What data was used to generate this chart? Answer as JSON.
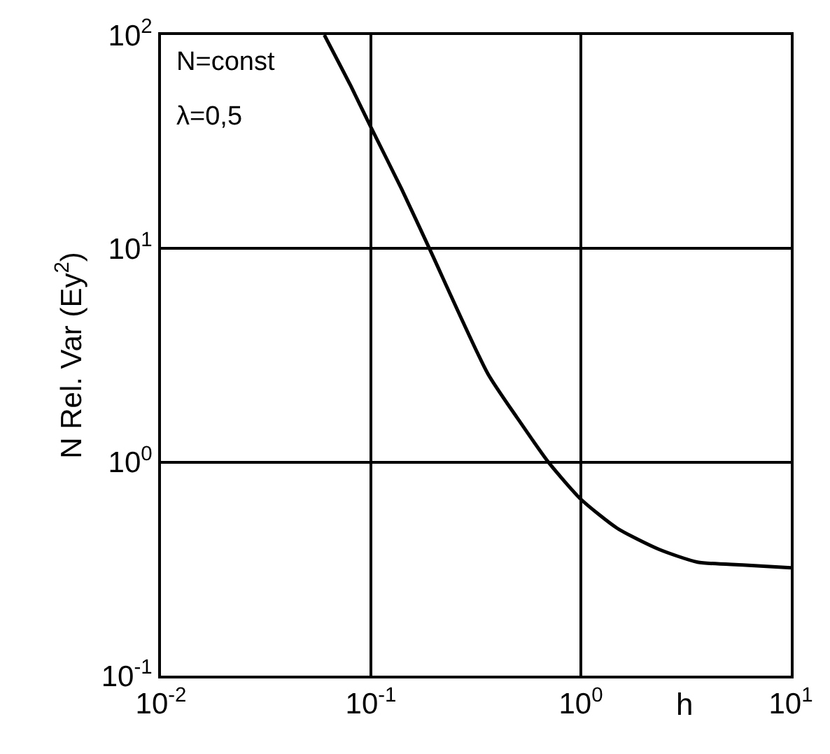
{
  "chart_data": {
    "type": "line",
    "xlabel": "h",
    "ylabel": "N Rel. Var (Ey$^{2}$)",
    "annotations": [
      "N=const",
      "λ=0,5"
    ],
    "x": [
      0.06,
      0.08,
      0.1,
      0.14,
      0.19,
      0.36,
      0.5,
      0.7,
      1,
      1.49,
      2.36,
      3.6,
      5.9,
      10
    ],
    "series": [
      {
        "color": "#000000",
        "values": [
          100,
          58,
          37,
          19,
          10,
          2.6,
          1.6,
          1,
          0.67,
          0.49,
          0.39,
          0.34,
          0.33,
          0.32
        ]
      }
    ],
    "log": "xy",
    "grid": true,
    "marker": "none",
    "line_style": "solid",
    "xlim": [
      0.01,
      10
    ],
    "ylim": [
      0.1,
      100
    ],
    "xticks": [
      {
        "value": 0.01,
        "label": "10$^{-2}$"
      },
      {
        "value": 0.1,
        "label": "10$^{-1}$"
      },
      {
        "value": 1,
        "label": "10$^{0}$"
      },
      {
        "value": 10,
        "label": "10$^{1}$"
      }
    ],
    "yticks": [
      {
        "value": 0.1,
        "label": "10$^{-1}$"
      },
      {
        "value": 1,
        "label": "10$^{0}$"
      },
      {
        "value": 10,
        "label": "10$^{1}$"
      },
      {
        "value": 100,
        "label": "10$^{2}$"
      }
    ]
  }
}
